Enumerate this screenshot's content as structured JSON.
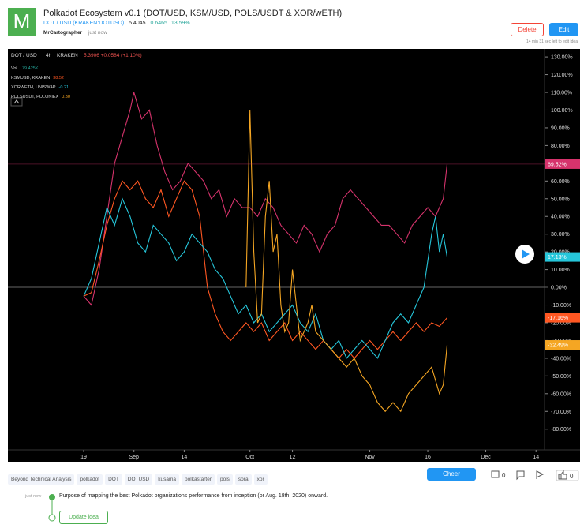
{
  "header": {
    "logo": "M",
    "title": "Polkadot Ecosystem v0.1 (DOT/USD, KSM/USD, POLS/USDT & XOR/wETH)",
    "symbol": "DOT / USD (KRAKEN:DOTUSD)",
    "price": "5.4045",
    "change": "0.6465",
    "change_pct": "13.59%",
    "author": "MrCartographer",
    "time": "just now",
    "delete": "Delete",
    "edit": "Edit",
    "edit_note": "14 min 31 sec left to edit idea"
  },
  "chart_data": {
    "type": "line",
    "main_legend": {
      "interval": "4h",
      "exchange": "KRAKEN",
      "quote": "5.3906 +0.0584 (+1.10%)"
    },
    "volume": {
      "label": "Vol",
      "value": "79.425K"
    },
    "xlim": [
      -19.6,
      119.2
    ],
    "xticks": [
      {
        "value": 0,
        "label": "19"
      },
      {
        "value": 13,
        "label": "Sep"
      },
      {
        "value": 26,
        "label": "14"
      },
      {
        "value": 43,
        "label": "Oct"
      },
      {
        "value": 54,
        "label": "12"
      },
      {
        "value": 74,
        "label": "Nov"
      },
      {
        "value": 89,
        "label": "16"
      },
      {
        "value": 104,
        "label": "Dec"
      },
      {
        "value": 117,
        "label": "14"
      }
    ],
    "ylim": [
      -91.7,
      134.5
    ],
    "yticks": [
      {
        "value": 130,
        "label": "130.00%"
      },
      {
        "value": 120,
        "label": "120.00%"
      },
      {
        "value": 110,
        "label": "110.00%"
      },
      {
        "value": 100,
        "label": "100.00%"
      },
      {
        "value": 90,
        "label": "90.00%"
      },
      {
        "value": 80,
        "label": "80.00%"
      },
      {
        "value": 70,
        "label": "70.00%"
      },
      {
        "value": 60,
        "label": "60.00%"
      },
      {
        "value": 50,
        "label": "50.00%"
      },
      {
        "value": 40,
        "label": "40.00%"
      },
      {
        "value": 30,
        "label": "30.00%"
      },
      {
        "value": 20,
        "label": "20.00%"
      },
      {
        "value": 10,
        "label": "10.00%"
      },
      {
        "value": 0,
        "label": "0.00%"
      },
      {
        "value": -10,
        "label": "-10.00%"
      },
      {
        "value": -20,
        "label": "-20.00%"
      },
      {
        "value": -30,
        "label": "-30.00%"
      },
      {
        "value": -40,
        "label": "-40.00%"
      },
      {
        "value": -50,
        "label": "-50.00%"
      },
      {
        "value": -60,
        "label": "-60.00%"
      },
      {
        "value": -70,
        "label": "-70.00%"
      },
      {
        "value": -80,
        "label": "-80.00%"
      }
    ],
    "series": [
      {
        "name": "DOT / USD",
        "color": "#d6336c",
        "end": {
          "value": 69.52,
          "label": "69.52%"
        },
        "x": [
          0,
          2,
          4,
          6,
          8,
          10,
          12,
          13,
          15,
          17,
          19,
          21,
          23,
          25,
          27,
          29,
          31,
          33,
          35,
          37,
          39,
          41,
          43,
          45,
          47,
          49,
          51,
          53,
          55,
          57,
          59,
          61,
          63,
          65,
          67,
          69,
          71,
          73,
          75,
          77,
          79,
          81,
          83,
          85,
          87,
          89,
          91,
          93,
          94
        ],
        "values": [
          -5,
          -10,
          10,
          40,
          70,
          85,
          100,
          110,
          95,
          100,
          80,
          65,
          55,
          60,
          70,
          65,
          60,
          50,
          55,
          40,
          50,
          45,
          45,
          40,
          50,
          45,
          35,
          30,
          25,
          35,
          30,
          20,
          30,
          35,
          50,
          55,
          50,
          45,
          40,
          35,
          35,
          30,
          25,
          35,
          40,
          45,
          40,
          50,
          69.52
        ]
      },
      {
        "name": "KSMUSD, KRAKEN",
        "legend_value": "38.52",
        "color": "#ff5722",
        "end": {
          "value": -17.16,
          "label": "-17.16%"
        },
        "x": [
          0,
          2,
          4,
          6,
          8,
          10,
          12,
          14,
          16,
          18,
          20,
          22,
          24,
          26,
          28,
          30,
          32,
          34,
          36,
          38,
          40,
          42,
          44,
          46,
          48,
          50,
          52,
          54,
          56,
          58,
          60,
          62,
          64,
          66,
          68,
          70,
          72,
          74,
          76,
          78,
          80,
          82,
          84,
          86,
          88,
          90,
          92,
          94
        ],
        "values": [
          -5,
          -3,
          15,
          35,
          50,
          60,
          55,
          60,
          50,
          45,
          55,
          40,
          50,
          60,
          55,
          40,
          0,
          -15,
          -25,
          -30,
          -25,
          -20,
          -25,
          -20,
          -30,
          -25,
          -20,
          -30,
          -25,
          -30,
          -35,
          -30,
          -35,
          -40,
          -35,
          -40,
          -35,
          -30,
          -35,
          -30,
          -25,
          -30,
          -25,
          -20,
          -25,
          -20,
          -22,
          -17.16
        ]
      },
      {
        "name": "XORWETH, UNISWAP",
        "legend_value": "-0.21",
        "color": "#26c6da",
        "end": {
          "value": 17.13,
          "label": "17.13%"
        },
        "x": [
          0,
          2,
          4,
          6,
          8,
          10,
          12,
          14,
          16,
          18,
          20,
          22,
          24,
          26,
          28,
          30,
          32,
          34,
          36,
          38,
          40,
          42,
          44,
          46,
          48,
          50,
          52,
          54,
          56,
          58,
          60,
          62,
          64,
          66,
          68,
          70,
          72,
          74,
          76,
          78,
          80,
          82,
          84,
          86,
          88,
          90,
          91,
          92,
          93,
          94
        ],
        "values": [
          -5,
          5,
          25,
          45,
          35,
          50,
          40,
          25,
          20,
          35,
          30,
          25,
          15,
          20,
          30,
          25,
          20,
          10,
          5,
          -5,
          -15,
          -10,
          -20,
          -15,
          -25,
          -20,
          -15,
          -10,
          -20,
          -25,
          -15,
          -30,
          -35,
          -30,
          -40,
          -35,
          -30,
          -35,
          -40,
          -30,
          -20,
          -15,
          -20,
          -10,
          0,
          30,
          40,
          20,
          30,
          17.13
        ]
      },
      {
        "name": "POLSUSDT, POLONIEX",
        "legend_value": "0.30",
        "color": "#f5a623",
        "end": {
          "value": -32.49,
          "label": "-32.49%"
        },
        "x": [
          42,
          43,
          44,
          45,
          46,
          47,
          48,
          49,
          50,
          51,
          52,
          53,
          54,
          55,
          56,
          57,
          58,
          59,
          60,
          62,
          64,
          66,
          68,
          70,
          72,
          74,
          76,
          78,
          80,
          82,
          84,
          86,
          88,
          90,
          92,
          93,
          94
        ],
        "values": [
          0,
          100,
          20,
          -20,
          -15,
          40,
          60,
          20,
          30,
          -10,
          -25,
          -20,
          10,
          -10,
          -30,
          -25,
          -20,
          -10,
          -25,
          -30,
          -35,
          -40,
          -45,
          -40,
          -50,
          -55,
          -65,
          -70,
          -65,
          -70,
          -60,
          -55,
          -50,
          -45,
          -60,
          -55,
          -32.49
        ]
      }
    ]
  },
  "tags": [
    "Beyond Technical Analysis",
    "polkadot",
    "DOT",
    "DOTUSD",
    "kusama",
    "polkastarter",
    "pols",
    "sora",
    "xor"
  ],
  "actions": {
    "cheer": "Cheer",
    "comments": "0",
    "likes": "0"
  },
  "timeline": {
    "time": "just now",
    "text": "Purpose of mapping the best Polkadot organizations performance from inception (or Aug. 18th, 2020) onward.",
    "button": "Update idea"
  }
}
